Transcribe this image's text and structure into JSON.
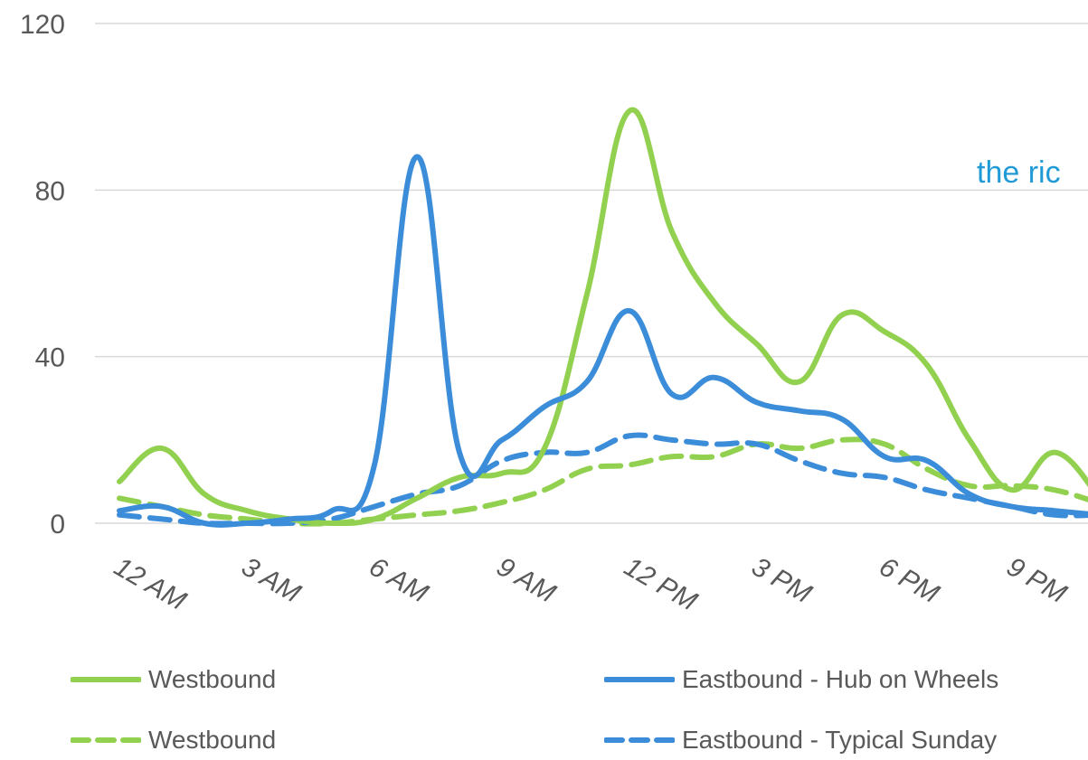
{
  "chart_data": {
    "type": "line",
    "x": [
      "12 AM",
      "1 AM",
      "2 AM",
      "3 AM",
      "4 AM",
      "5 AM",
      "6 AM",
      "7 AM",
      "8 AM",
      "9 AM",
      "10 AM",
      "11 AM",
      "12 PM",
      "1 PM",
      "2 PM",
      "3 PM",
      "4 PM",
      "5 PM",
      "6 PM",
      "7 PM",
      "8 PM",
      "9 PM",
      "10 PM",
      "11 PM"
    ],
    "x_tick_labels": [
      "12 AM",
      "3 AM",
      "6 AM",
      "9 AM",
      "12 PM",
      "3 PM",
      "6 PM",
      "9 PM"
    ],
    "ylim": [
      0,
      120
    ],
    "y_ticks": [
      "0",
      "40",
      "80",
      "120"
    ],
    "grid": true,
    "legend_position": "bottom",
    "series": [
      {
        "name": "Westbound",
        "color": "#92d050",
        "dash": "solid",
        "values": [
          10,
          18,
          7,
          3,
          1,
          0,
          1,
          6,
          11,
          12,
          18,
          55,
          99,
          70,
          53,
          43,
          34,
          50,
          46,
          38,
          20,
          8,
          17,
          7
        ]
      },
      {
        "name": "Eastbound - Hub on Wheels",
        "color": "#3c8dd9",
        "dash": "solid",
        "values": [
          3,
          4,
          0,
          0,
          1,
          3,
          14,
          88,
          17,
          20,
          28,
          34,
          51,
          31,
          35,
          29,
          27,
          25,
          16,
          15,
          7,
          4,
          3,
          2
        ]
      },
      {
        "name": "Westbound",
        "color": "#92d050",
        "dash": "dashed",
        "values": [
          6,
          4,
          2,
          1,
          0,
          0,
          1,
          2,
          3,
          5,
          8,
          13,
          14,
          16,
          16,
          19,
          18,
          20,
          19,
          13,
          9,
          9,
          8,
          5
        ]
      },
      {
        "name": "Eastbound - Typical Sunday",
        "color": "#3c8dd9",
        "dash": "dashed",
        "values": [
          2,
          1,
          0,
          0,
          0,
          1,
          4,
          7,
          9,
          15,
          17,
          17,
          21,
          20,
          19,
          19,
          15,
          12,
          11,
          8,
          6,
          4,
          2,
          2
        ]
      }
    ],
    "annotation": "the ric"
  },
  "annotation_color": "#1f9ad6"
}
